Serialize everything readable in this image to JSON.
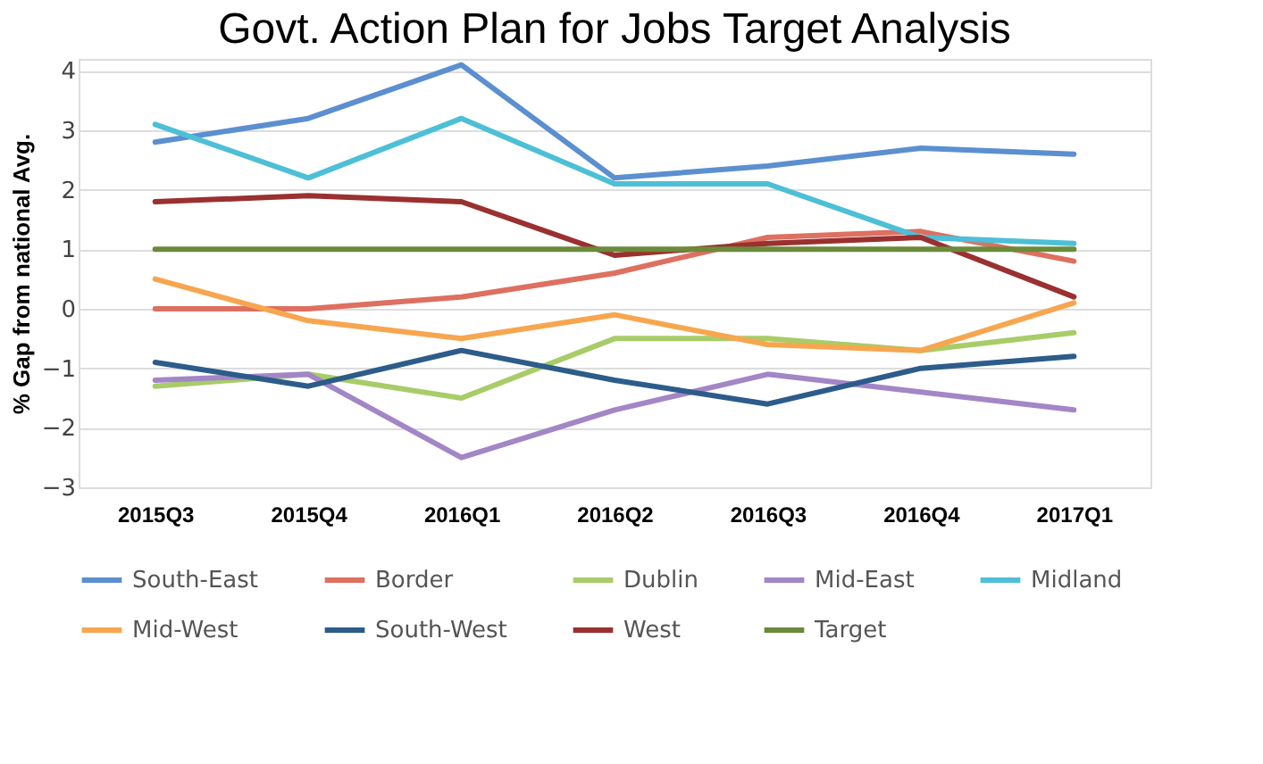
{
  "chart_data": {
    "type": "line",
    "title": "Govt. Action Plan for Jobs Target Analysis",
    "ylabel": "% Gap from national Avg.",
    "categories": [
      "2015Q3",
      "2015Q4",
      "2016Q1",
      "2016Q2",
      "2016Q3",
      "2016Q4",
      "2017Q1"
    ],
    "series": [
      {
        "name": "South-East",
        "color": "#5b8fd0",
        "values": [
          2.8,
          3.2,
          4.1,
          2.2,
          2.4,
          2.7,
          2.6
        ]
      },
      {
        "name": "Border",
        "color": "#dd7060",
        "values": [
          0,
          0,
          0.2,
          0.6,
          1.2,
          1.3,
          0.8
        ]
      },
      {
        "name": "Dublin",
        "color": "#a8cc68",
        "values": [
          -1.3,
          -1.1,
          -1.5,
          -0.5,
          -0.5,
          -0.7,
          -0.4
        ]
      },
      {
        "name": "Mid-East",
        "color": "#a386c6",
        "values": [
          -1.2,
          -1.1,
          -2.5,
          -1.7,
          -1.1,
          -1.4,
          -1.7
        ]
      },
      {
        "name": "Midland",
        "color": "#4dbfd6",
        "values": [
          3.1,
          2.2,
          3.2,
          2.1,
          2.1,
          1.2,
          1.1
        ]
      },
      {
        "name": "Mid-West",
        "color": "#f7a650",
        "values": [
          0.5,
          -0.2,
          -0.5,
          -0.1,
          -0.6,
          -0.7,
          0.1
        ]
      },
      {
        "name": "South-West",
        "color": "#2c5c8a",
        "values": [
          -0.9,
          -1.3,
          -0.7,
          -1.2,
          -1.6,
          -1.0,
          -0.8
        ]
      },
      {
        "name": "West",
        "color": "#9a3030",
        "values": [
          1.8,
          1.9,
          1.8,
          0.9,
          1.1,
          1.2,
          0.2
        ]
      },
      {
        "name": "Target",
        "color": "#6b8a3a",
        "values": [
          1,
          1,
          1,
          1,
          1,
          1,
          1
        ]
      }
    ],
    "ylim": [
      -3,
      4.2
    ],
    "yticks": [
      -3,
      -2,
      -1,
      0,
      1,
      2,
      3,
      4
    ],
    "grid": "y",
    "legend": "bottom",
    "marker": "none",
    "line_style": "solid"
  }
}
